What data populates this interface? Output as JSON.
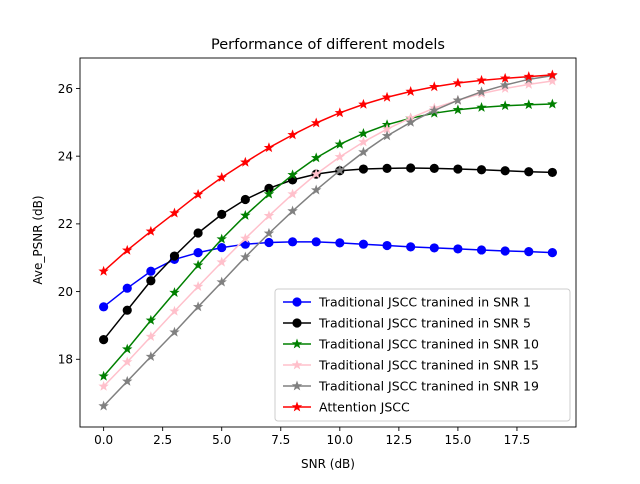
{
  "chart_data": {
    "type": "line",
    "title": "Performance of different models",
    "xlabel": "SNR (dB)",
    "ylabel": "Ave_PSNR (dB)",
    "xlim": [
      -1,
      20
    ],
    "ylim": [
      16.0,
      26.9
    ],
    "grid": false,
    "legend_position": "lower right",
    "xticks": [
      0.0,
      2.5,
      5.0,
      7.5,
      10.0,
      12.5,
      15.0,
      17.5
    ],
    "xtick_labels": [
      "0.0",
      "2.5",
      "5.0",
      "7.5",
      "10.0",
      "12.5",
      "15.0",
      "17.5"
    ],
    "yticks": [
      18,
      20,
      22,
      24,
      26
    ],
    "ytick_labels": [
      "18",
      "20",
      "22",
      "24",
      "26"
    ],
    "x": [
      0,
      1,
      2,
      3,
      4,
      5,
      6,
      7,
      8,
      9,
      10,
      11,
      12,
      13,
      14,
      15,
      16,
      17,
      18,
      19
    ],
    "series": [
      {
        "name": "Traditional JSCC tranined in SNR 1",
        "color": "#0000ff",
        "marker": "circle",
        "values": [
          19.55,
          20.1,
          20.6,
          20.95,
          21.15,
          21.3,
          21.4,
          21.45,
          21.47,
          21.47,
          21.44,
          21.4,
          21.36,
          21.32,
          21.29,
          21.26,
          21.23,
          21.2,
          21.18,
          21.15
        ]
      },
      {
        "name": "Traditional JSCC tranined in SNR 5",
        "color": "#000000",
        "marker": "circle",
        "values": [
          18.58,
          19.45,
          20.32,
          21.05,
          21.73,
          22.28,
          22.72,
          23.05,
          23.3,
          23.47,
          23.57,
          23.62,
          23.64,
          23.65,
          23.64,
          23.62,
          23.6,
          23.57,
          23.54,
          23.52
        ]
      },
      {
        "name": "Traditional JSCC tranined in SNR 10",
        "color": "#008000",
        "marker": "star",
        "values": [
          17.5,
          18.3,
          19.15,
          19.97,
          20.78,
          21.55,
          22.25,
          22.88,
          23.45,
          23.95,
          24.35,
          24.67,
          24.93,
          25.12,
          25.27,
          25.37,
          25.44,
          25.49,
          25.52,
          25.54
        ]
      },
      {
        "name": "Traditional JSCC tranined in SNR 15",
        "color": "#ffc0cb",
        "marker": "star",
        "values": [
          17.2,
          17.92,
          18.67,
          19.42,
          20.15,
          20.87,
          21.57,
          22.24,
          22.88,
          23.47,
          23.98,
          24.42,
          24.8,
          25.13,
          25.42,
          25.65,
          25.85,
          26.0,
          26.12,
          26.22
        ]
      },
      {
        "name": "Traditional JSCC tranined in SNR 19",
        "color": "#808080",
        "marker": "star",
        "values": [
          16.62,
          17.35,
          18.08,
          18.8,
          19.55,
          20.28,
          21.02,
          21.72,
          22.38,
          23.0,
          23.58,
          24.12,
          24.6,
          25.0,
          25.35,
          25.65,
          25.9,
          26.1,
          26.27,
          26.38
        ]
      },
      {
        "name": "Attention JSCC",
        "color": "#ff0000",
        "marker": "star",
        "values": [
          20.6,
          21.22,
          21.78,
          22.32,
          22.87,
          23.37,
          23.82,
          24.25,
          24.63,
          24.98,
          25.28,
          25.53,
          25.74,
          25.91,
          26.05,
          26.16,
          26.24,
          26.3,
          26.35,
          26.4
        ]
      }
    ]
  }
}
